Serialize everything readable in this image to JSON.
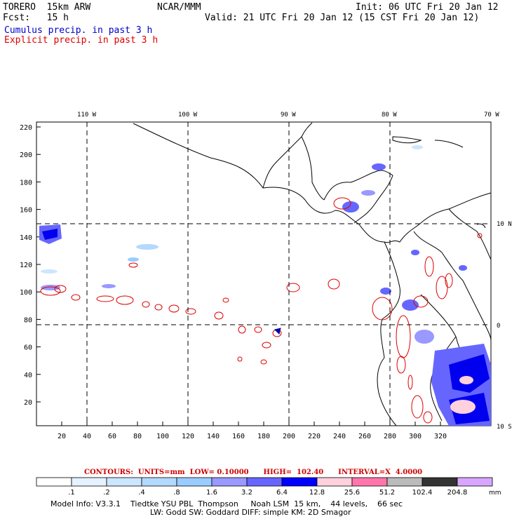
{
  "header": {
    "model": "TORERO  15km ARW",
    "org": "NCAR/MMM",
    "init": "Init: 06 UTC Fri 20 Jan 12",
    "fcst": "Fcst:   15 h",
    "valid": "Valid: 21 UTC Fri 20 Jan 12 (15 CST Fri 20 Jan 12)",
    "field1": "Cumulus precip. in past 3 h",
    "field2": "Explicit precip. in past 3 h"
  },
  "axes": {
    "top_lon_labels": [
      "110 W",
      "100 W",
      "90 W",
      "80 W",
      "70 W"
    ],
    "right_lat_labels": [
      "10 N",
      "0",
      "10 S"
    ],
    "left_ticks": [
      "220",
      "200",
      "180",
      "160",
      "140",
      "120",
      "100",
      "80",
      "60",
      "40",
      "20"
    ],
    "bottom_ticks": [
      "20",
      "40",
      "60",
      "80",
      "100",
      "120",
      "140",
      "160",
      "180",
      "200",
      "220",
      "240",
      "260",
      "280",
      "300",
      "320"
    ]
  },
  "contours": {
    "label": "CONTOURS:  UNITS=mm  LOW= 0.10000      HIGH=  102.40      INTERVAL=X  4.0000"
  },
  "colorbar": {
    "labels": [
      ".1",
      ".2",
      ".4",
      ".8",
      "1.6",
      "3.2",
      "6.4",
      "12.8",
      "25.6",
      "51.2",
      "102.4",
      "204.8"
    ],
    "unit": "mm",
    "colors": [
      "#ffffff",
      "#e6f2ff",
      "#cce6ff",
      "#b3d9ff",
      "#99ccff",
      "#9999ff",
      "#6666ff",
      "#0000ff",
      "#ffd1dc",
      "#ff77aa",
      "#bbbbbb",
      "#333333",
      "#d9a6ff"
    ]
  },
  "model_info": {
    "line1": "Model Info: V3.3.1    Tiedtke YSU PBL  Thompson     Noah LSM  15 km,    44 levels,    66 sec",
    "line2": "LW: Godd SW: Goddard DIFF: simple KM: 2D Smagor"
  }
}
